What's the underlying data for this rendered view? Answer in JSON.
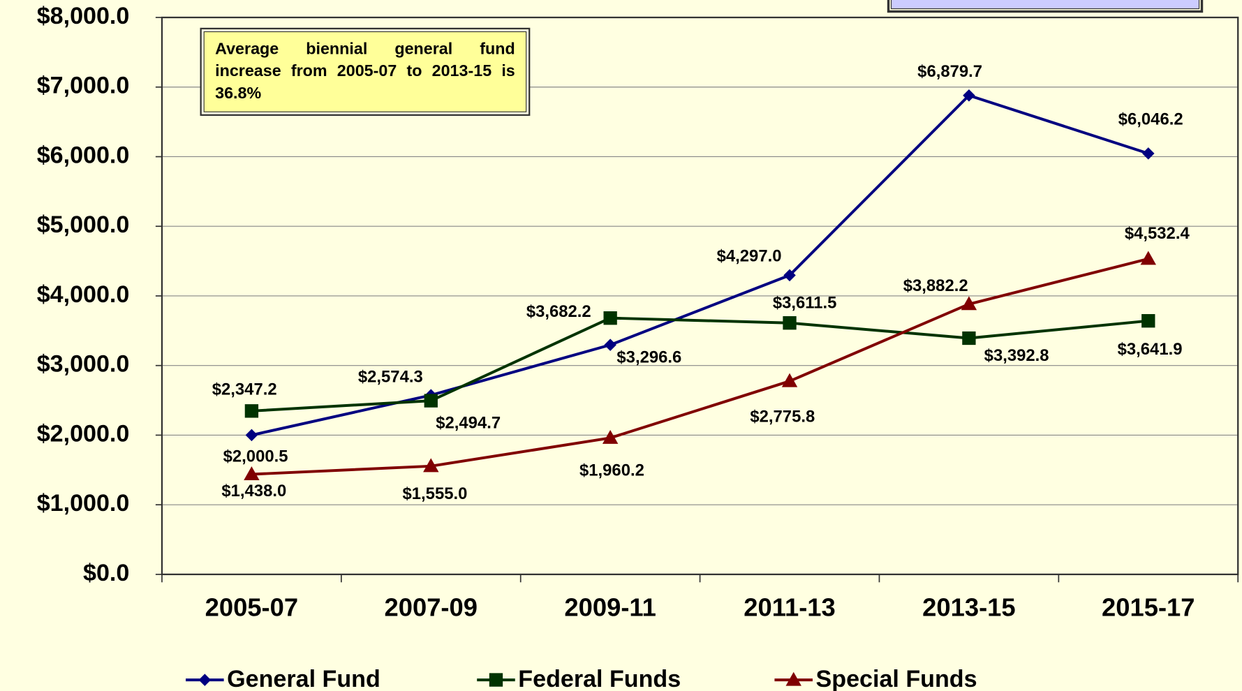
{
  "chart_data": {
    "type": "line",
    "annotation": "Average biennial general fund increase from 2005-07 to 2013-15 is 36.8%",
    "categories": [
      "2005-07",
      "2007-09",
      "2009-11",
      "2011-13",
      "2013-15",
      "2015-17"
    ],
    "series": [
      {
        "name": "General Fund",
        "color": "#000080",
        "marker": "diamond",
        "values": [
          2000.5,
          2574.3,
          3296.6,
          4297.0,
          6879.7,
          6046.2
        ],
        "value_labels": [
          "$2,000.5",
          "$2,574.3",
          "$3,296.6",
          "$4,297.0",
          "$6,879.7",
          "$6,046.2"
        ]
      },
      {
        "name": "Federal Funds",
        "color": "#003300",
        "marker": "square",
        "values": [
          2347.2,
          2494.7,
          3682.2,
          3611.5,
          3392.8,
          3641.9
        ],
        "value_labels": [
          "$2,347.2",
          "$2,494.7",
          "$3,682.2",
          "$3,611.5",
          "$3,392.8",
          "$3,641.9"
        ]
      },
      {
        "name": "Special Funds",
        "color": "#800000",
        "marker": "triangle",
        "values": [
          1438.0,
          1555.0,
          1960.2,
          2775.8,
          3882.2,
          4532.4
        ],
        "value_labels": [
          "$1,438.0",
          "$1,555.0",
          "$1,960.2",
          "$2,775.8",
          "$3,882.2",
          "$4,532.4"
        ]
      }
    ],
    "ylim": [
      0,
      8000
    ],
    "yticks": [
      {
        "value": 0,
        "label": "$0.0"
      },
      {
        "value": 1000,
        "label": "$1,000.0"
      },
      {
        "value": 2000,
        "label": "$2,000.0"
      },
      {
        "value": 3000,
        "label": "$3,000.0"
      },
      {
        "value": 4000,
        "label": "$4,000.0"
      },
      {
        "value": 5000,
        "label": "$5,000.0"
      },
      {
        "value": 6000,
        "label": "$6,000.0"
      },
      {
        "value": 7000,
        "label": "$7,000.0"
      },
      {
        "value": 8000,
        "label": "$8,000.0"
      }
    ],
    "grid": true,
    "legend": "bottom"
  }
}
